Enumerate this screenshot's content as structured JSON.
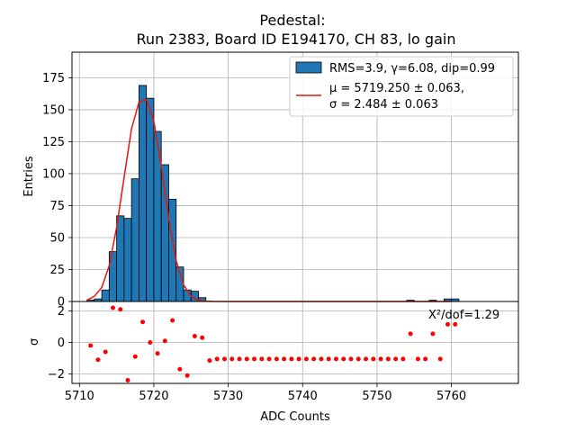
{
  "chart_data": [
    {
      "type": "bar",
      "panel": "main",
      "title_line1": "Pedestal:",
      "title_line2": "Run 2383, Board ID E194170, CH 83, lo gain",
      "ylabel": "Entries",
      "xlim": [
        5709,
        5769
      ],
      "ylim": [
        0,
        195
      ],
      "xticks": [
        5710,
        5720,
        5730,
        5740,
        5750,
        5760
      ],
      "yticks": [
        0,
        25,
        50,
        75,
        100,
        125,
        150,
        175
      ],
      "grid": true,
      "bin_width": 1,
      "histogram": {
        "name": "RMS=3.9, γ=6.08, dip=0.99",
        "color": "#1f77b4",
        "bins": [
          {
            "x": 5711,
            "count": 1
          },
          {
            "x": 5712,
            "count": 2
          },
          {
            "x": 5713,
            "count": 9
          },
          {
            "x": 5714,
            "count": 39
          },
          {
            "x": 5715,
            "count": 67
          },
          {
            "x": 5716,
            "count": 65
          },
          {
            "x": 5717,
            "count": 96
          },
          {
            "x": 5718,
            "count": 169
          },
          {
            "x": 5719,
            "count": 159
          },
          {
            "x": 5720,
            "count": 133
          },
          {
            "x": 5721,
            "count": 107
          },
          {
            "x": 5722,
            "count": 80
          },
          {
            "x": 5723,
            "count": 27
          },
          {
            "x": 5724,
            "count": 9
          },
          {
            "x": 5725,
            "count": 8
          },
          {
            "x": 5726,
            "count": 3
          },
          {
            "x": 5754,
            "count": 1
          },
          {
            "x": 5757,
            "count": 1
          },
          {
            "x": 5759,
            "count": 2
          },
          {
            "x": 5760,
            "count": 2
          }
        ]
      },
      "fit": {
        "name_line1": "μ = 5719.250 ± 0.063,",
        "name_line2": "σ = 2.484 ± 0.063",
        "color": "#e8150c",
        "points": [
          [
            5711,
            1
          ],
          [
            5712,
            4
          ],
          [
            5713,
            11
          ],
          [
            5714,
            28
          ],
          [
            5715,
            58
          ],
          [
            5716,
            97
          ],
          [
            5717,
            135
          ],
          [
            5718,
            156
          ],
          [
            5719,
            158
          ],
          [
            5720,
            141
          ],
          [
            5721,
            106
          ],
          [
            5722,
            65
          ],
          [
            5723,
            32
          ],
          [
            5724,
            13
          ],
          [
            5725,
            4
          ],
          [
            5726,
            1
          ],
          [
            5727,
            0.3
          ],
          [
            5728,
            0.1
          ],
          [
            5730,
            0
          ],
          [
            5760,
            0
          ]
        ]
      }
    },
    {
      "type": "scatter",
      "panel": "residuals",
      "xlabel": "ADC Counts",
      "ylabel": "σ",
      "ylim": [
        -2.6,
        2.6
      ],
      "yticks": [
        -2,
        0,
        2
      ],
      "annotation": "X²/dof=1.29",
      "color": "#ff0000",
      "x": [
        5711.5,
        5712.5,
        5713.5,
        5714.5,
        5715.5,
        5716.5,
        5717.5,
        5718.5,
        5719.5,
        5720.5,
        5721.5,
        5722.5,
        5723.5,
        5724.5,
        5725.5,
        5726.5,
        5727.5,
        5728.5,
        5729.5,
        5730.5,
        5731.5,
        5732.5,
        5733.5,
        5734.5,
        5735.5,
        5736.5,
        5737.5,
        5738.5,
        5739.5,
        5740.5,
        5741.5,
        5742.5,
        5743.5,
        5744.5,
        5745.5,
        5746.5,
        5747.5,
        5748.5,
        5749.5,
        5750.5,
        5751.5,
        5752.5,
        5753.5,
        5754.5,
        5755.5,
        5756.5,
        5757.5,
        5758.5,
        5759.5,
        5760.5
      ],
      "y": [
        -0.2,
        -1.1,
        -0.6,
        2.2,
        2.1,
        -2.4,
        -0.9,
        1.3,
        0,
        -0.7,
        0.1,
        1.4,
        -1.7,
        -2.1,
        0.4,
        0.3,
        -1.15,
        -1.05,
        -1.05,
        -1.05,
        -1.05,
        -1.05,
        -1.05,
        -1.05,
        -1.05,
        -1.05,
        -1.05,
        -1.05,
        -1.05,
        -1.05,
        -1.05,
        -1.05,
        -1.05,
        -1.05,
        -1.05,
        -1.05,
        -1.05,
        -1.05,
        -1.05,
        -1.05,
        -1.05,
        -1.05,
        -1.05,
        0.55,
        -1.05,
        -1.05,
        0.55,
        -1.05,
        1.15,
        1.15
      ]
    }
  ]
}
